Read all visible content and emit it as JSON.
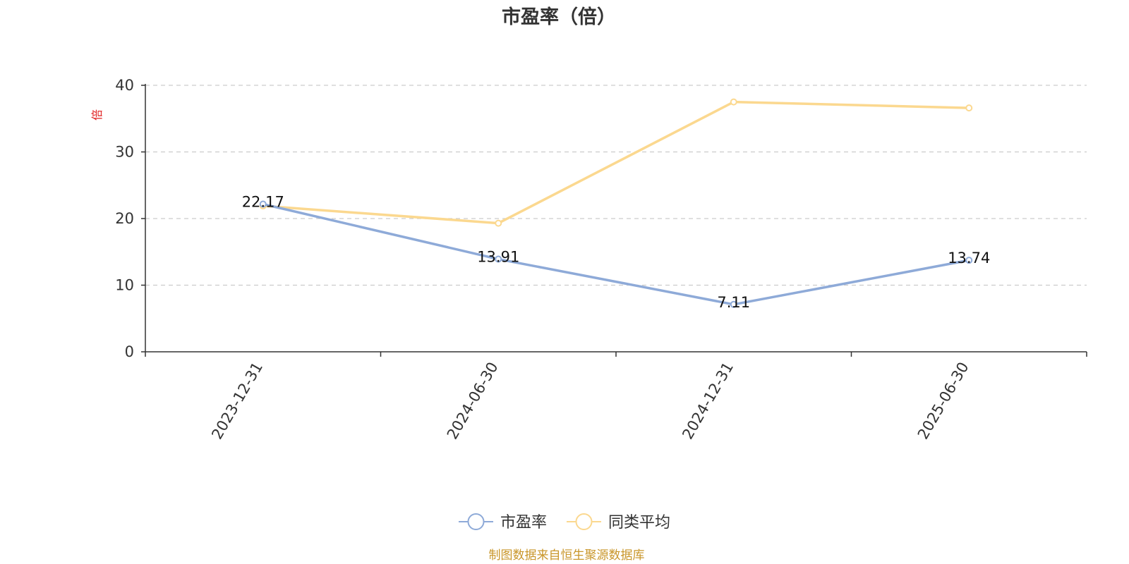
{
  "chart_data": {
    "type": "line",
    "title": "市盈率（倍）",
    "ylabel": "倍",
    "categories": [
      "2023-12-31",
      "2024-06-30",
      "2024-12-31",
      "2025-06-30"
    ],
    "ylim": [
      0,
      40
    ],
    "yticks": [
      0,
      10,
      20,
      30,
      40
    ],
    "grid": true,
    "legend_position": "bottom",
    "series": [
      {
        "name": "市盈率",
        "values": [
          22.17,
          13.91,
          7.11,
          13.74
        ],
        "labels": [
          "22.17",
          "13.91",
          "7.11",
          "13.74"
        ],
        "color": "#8eaad8"
      },
      {
        "name": "同类平均",
        "values": [
          21.9,
          19.3,
          37.5,
          36.6
        ],
        "color": "#fbd88f"
      }
    ]
  },
  "footer": {
    "source": "制图数据来自恒生聚源数据库",
    "source_color": "#c9962a"
  }
}
